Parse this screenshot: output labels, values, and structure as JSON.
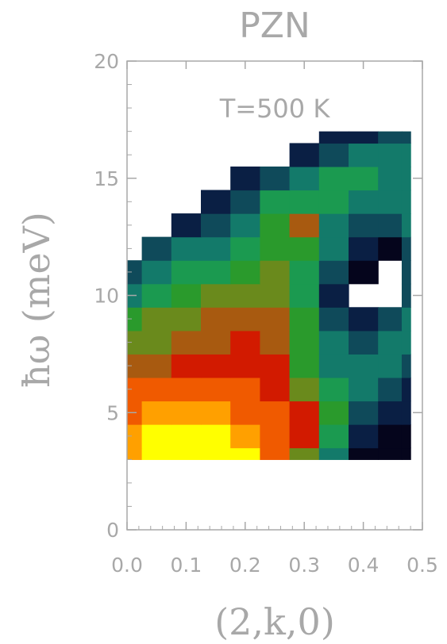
{
  "chart_data": {
    "type": "heatmap",
    "title": "PZN",
    "annotation": "T=500 K",
    "xlabel": "(2,k,0)",
    "ylabel": "ħω (meV)",
    "xlim": [
      0.0,
      0.5
    ],
    "ylim": [
      0,
      20
    ],
    "x_ticks": [
      0.0,
      0.1,
      0.2,
      0.3,
      0.4,
      0.5
    ],
    "x_tick_labels": [
      "0.0",
      "0.1",
      "0.2",
      "0.3",
      "0.4",
      "0.5"
    ],
    "y_ticks": [
      0,
      5,
      10,
      15,
      20
    ],
    "y_tick_labels": [
      "0",
      "5",
      "10",
      "15",
      "20"
    ],
    "colormap": [
      "#05051c",
      "#0a1f44",
      "#0f4a5a",
      "#137a6a",
      "#1b9a50",
      "#2a9a2c",
      "#6a8a1c",
      "#a85a10",
      "#d21a00",
      "#f05a00",
      "#ffa000",
      "#ffff00"
    ],
    "x": [
      0.0,
      0.05,
      0.1,
      0.15,
      0.2,
      0.25,
      0.3,
      0.35,
      0.4,
      0.45,
      0.48
    ],
    "y": [
      3,
      4,
      5,
      6,
      7,
      8,
      9,
      10,
      11,
      12,
      13,
      14,
      15,
      16,
      17
    ],
    "z": [
      [
        10.5,
        11.0,
        11.5,
        11.5,
        10.8,
        9.5,
        6.5,
        3.5,
        0.8,
        0.4,
        0.3
      ],
      [
        10.5,
        11.0,
        11.0,
        11.0,
        10.5,
        9.5,
        7.8,
        4.5,
        1.5,
        0.8,
        0.6
      ],
      [
        9.5,
        9.8,
        10.0,
        10.0,
        9.5,
        8.8,
        8.0,
        5.0,
        2.5,
        1.5,
        1.0
      ],
      [
        8.8,
        9.0,
        9.0,
        9.0,
        8.8,
        8.3,
        6.5,
        4.2,
        3.2,
        2.5,
        1.8
      ],
      [
        7.5,
        7.6,
        7.8,
        8.0,
        8.2,
        7.8,
        5.2,
        3.5,
        3.5,
        3.2,
        2.8
      ],
      [
        6.2,
        6.5,
        7.0,
        7.6,
        8.0,
        7.3,
        5.0,
        3.0,
        2.8,
        3.2,
        3.0
      ],
      [
        5.2,
        5.8,
        6.3,
        7.0,
        7.2,
        6.8,
        4.8,
        2.0,
        1.0,
        2.2,
        3.0
      ],
      [
        3.8,
        4.5,
        5.0,
        5.8,
        6.3,
        6.5,
        4.5,
        1.8,
        0.0,
        0.0,
        2.5
      ],
      [
        2.5,
        3.2,
        4.0,
        4.5,
        5.5,
        6.3,
        4.5,
        2.2,
        0.6,
        0.0,
        2.0
      ],
      [
        0.0,
        2.0,
        3.2,
        3.8,
        4.5,
        5.5,
        4.8,
        3.0,
        1.5,
        0.8,
        2.5
      ],
      [
        0.0,
        0.0,
        1.5,
        2.8,
        3.5,
        4.8,
        6.8,
        3.8,
        2.5,
        2.0,
        3.0
      ],
      [
        0.0,
        0.0,
        0.0,
        1.5,
        2.5,
        4.0,
        4.5,
        4.5,
        3.5,
        3.0,
        3.2
      ],
      [
        0.0,
        0.0,
        0.0,
        0.0,
        1.2,
        2.5,
        3.5,
        4.5,
        4.0,
        3.5,
        3.5
      ],
      [
        0.0,
        0.0,
        0.0,
        0.0,
        0.0,
        0.0,
        1.8,
        2.8,
        3.5,
        3.5,
        3.5
      ],
      [
        0.0,
        0.0,
        0.0,
        0.0,
        0.0,
        0.0,
        0.0,
        1.2,
        1.8,
        2.5,
        2.8
      ]
    ]
  }
}
